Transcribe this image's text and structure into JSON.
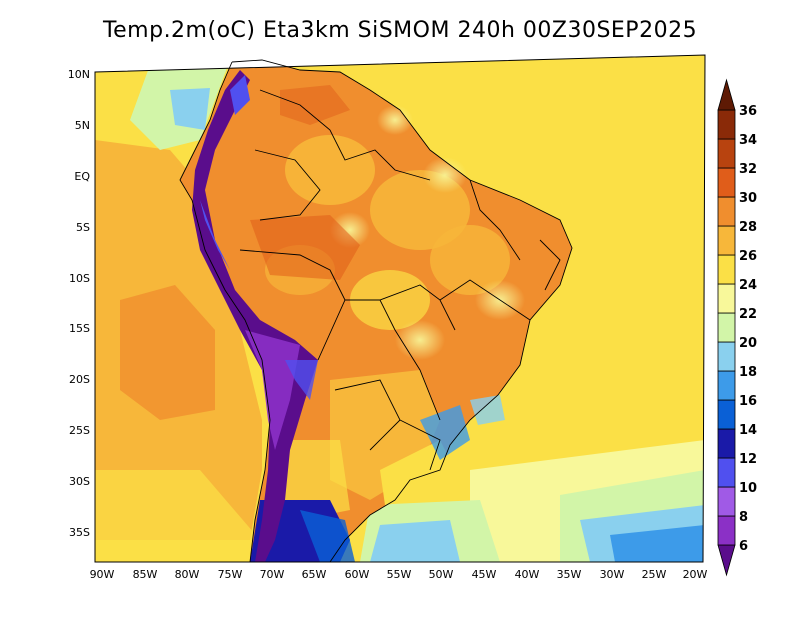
{
  "title": "Temp.2m(oC) Eta3km SiSMOM 240h 00Z30SEP2025",
  "map": {
    "lon_labels": [
      "90W",
      "85W",
      "80W",
      "75W",
      "70W",
      "65W",
      "60W",
      "55W",
      "50W",
      "45W",
      "40W",
      "35W",
      "30W",
      "25W",
      "20W"
    ],
    "lat_labels": [
      "10N",
      "5N",
      "EQ",
      "5S",
      "10S",
      "15S",
      "20S",
      "25S",
      "30S",
      "35S"
    ],
    "lon_range": [
      -91,
      -19
    ],
    "lat_range": [
      -38,
      12
    ]
  },
  "colorbar": {
    "labels": [
      "6",
      "8",
      "10",
      "12",
      "14",
      "16",
      "18",
      "20",
      "22",
      "24",
      "26",
      "28",
      "30",
      "32",
      "34",
      "36"
    ],
    "colors": [
      "#5a0d8c",
      "#8b30c6",
      "#a05ae6",
      "#5050ef",
      "#1a1aa8",
      "#0a60d6",
      "#3d9be9",
      "#8ad0ee",
      "#d2f5a8",
      "#f8f89a",
      "#fbe046",
      "#f7b73a",
      "#f08e2e",
      "#e05d1a",
      "#b8430f",
      "#8a2a08",
      "#5e1a04"
    ]
  }
}
